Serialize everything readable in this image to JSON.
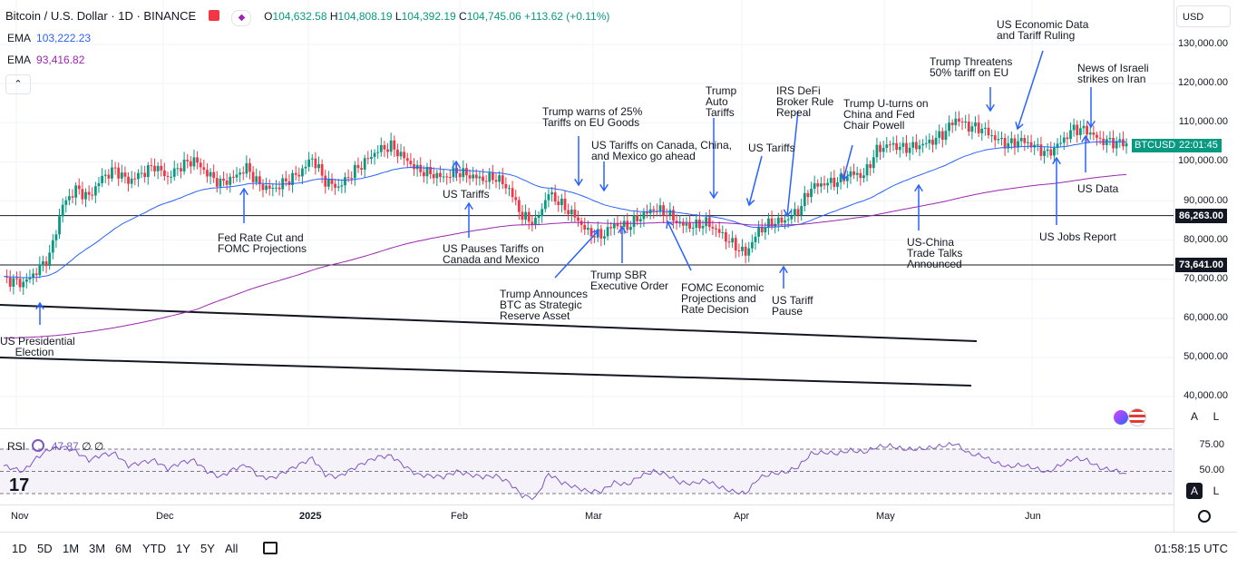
{
  "header": {
    "title": "Bitcoin / U.S. Dollar · 1D · BINANCE",
    "open_label": "O",
    "open": "104,632.58",
    "high_label": "H",
    "high": "104,808.19",
    "low_label": "L",
    "low": "104,392.19",
    "close_label": "C",
    "close": "104,745.06",
    "change": "+113.62 (+0.11%)"
  },
  "indicators": {
    "ema1_label": "EMA",
    "ema1_value": "103,222.23",
    "ema1_color": "#2962ff",
    "ema2_label": "EMA",
    "ema2_value": "93,416.82",
    "ema2_color": "#9c27b0",
    "collapse_icon": "chevron-up-icon"
  },
  "price_axis": {
    "currency": "USD",
    "ticks": [
      "130,000.00",
      "120,000.00",
      "110,000.00",
      "100,000.00",
      "90,000.00",
      "80,000.00",
      "70,000.00",
      "60,000.00",
      "50,000.00",
      "40,000.00"
    ],
    "tick_values": [
      130000,
      120000,
      110000,
      100000,
      90000,
      80000,
      70000,
      60000,
      50000,
      40000
    ],
    "level_1": "86,263.00",
    "level_1_value": 86263,
    "level_2": "73,641.00",
    "level_2_value": 73641,
    "symbol_tag": "BTCUSD",
    "countdown": "22:01:45",
    "last_price_value": 104745
  },
  "chart_data": {
    "type": "candlestick",
    "title": "Bitcoin / U.S. Dollar · 1D · BINANCE",
    "ylim": [
      37000,
      140000
    ],
    "x_labels": [
      "Nov",
      "Dec",
      "2025",
      "Feb",
      "Mar",
      "Apr",
      "May",
      "Jun"
    ],
    "close_series_approx": [
      [
        0,
        70000
      ],
      [
        6,
        69000
      ],
      [
        10,
        72000
      ],
      [
        14,
        76000
      ],
      [
        18,
        89000
      ],
      [
        22,
        93000
      ],
      [
        26,
        91000
      ],
      [
        30,
        96000
      ],
      [
        34,
        98000
      ],
      [
        38,
        95000
      ],
      [
        42,
        97000
      ],
      [
        46,
        99000
      ],
      [
        50,
        96000
      ],
      [
        54,
        99000
      ],
      [
        58,
        100500
      ],
      [
        62,
        97000
      ],
      [
        66,
        94500
      ],
      [
        70,
        96000
      ],
      [
        74,
        98500
      ],
      [
        78,
        94000
      ],
      [
        82,
        93000
      ],
      [
        86,
        95000
      ],
      [
        90,
        97000
      ],
      [
        94,
        101000
      ],
      [
        98,
        95000
      ],
      [
        102,
        93500
      ],
      [
        106,
        97000
      ],
      [
        110,
        100000
      ],
      [
        114,
        103000
      ],
      [
        118,
        104000
      ],
      [
        122,
        101000
      ],
      [
        126,
        98000
      ],
      [
        130,
        97000
      ],
      [
        134,
        96000
      ],
      [
        138,
        97500
      ],
      [
        142,
        96500
      ],
      [
        146,
        95500
      ],
      [
        150,
        96000
      ],
      [
        154,
        93000
      ],
      [
        158,
        86000
      ],
      [
        162,
        84500
      ],
      [
        166,
        92000
      ],
      [
        170,
        89000
      ],
      [
        174,
        86000
      ],
      [
        178,
        82000
      ],
      [
        182,
        81000
      ],
      [
        186,
        84000
      ],
      [
        190,
        83500
      ],
      [
        194,
        86000
      ],
      [
        198,
        88000
      ],
      [
        202,
        87000
      ],
      [
        206,
        84000
      ],
      [
        210,
        83500
      ],
      [
        214,
        84500
      ],
      [
        218,
        82000
      ],
      [
        222,
        79000
      ],
      [
        226,
        76500
      ],
      [
        230,
        82500
      ],
      [
        234,
        84500
      ],
      [
        238,
        85000
      ],
      [
        242,
        87500
      ],
      [
        246,
        93500
      ],
      [
        250,
        94500
      ],
      [
        254,
        95000
      ],
      [
        258,
        97000
      ],
      [
        262,
        96500
      ],
      [
        266,
        103000
      ],
      [
        270,
        104500
      ],
      [
        274,
        103500
      ],
      [
        278,
        104000
      ],
      [
        282,
        105000
      ],
      [
        286,
        107000
      ],
      [
        290,
        111000
      ],
      [
        294,
        109000
      ],
      [
        298,
        108500
      ],
      [
        302,
        106000
      ],
      [
        306,
        104500
      ],
      [
        310,
        105500
      ],
      [
        314,
        104000
      ],
      [
        318,
        102000
      ],
      [
        322,
        105000
      ],
      [
        326,
        108500
      ],
      [
        330,
        108000
      ],
      [
        334,
        105500
      ],
      [
        338,
        105000
      ],
      [
        342,
        104745
      ]
    ],
    "ema_fast": {
      "name": "EMA",
      "last": 103222.23
    },
    "ema_slow": {
      "name": "EMA",
      "last": 93416.82
    },
    "horizontal_levels": [
      86263,
      73641
    ],
    "annotations": [
      "US Presidential\n     Election",
      "Fed Rate Cut and\nFOMC Projections",
      "US Tariffs",
      "US Pauses Tariffs on\nCanada and Mexico",
      "Trump warns of 25%\nTariffs on EU Goods",
      "US Tariffs on Canada, China,\nand Mexico go ahead",
      "Trump Announces\nBTC as Strategic\nReserve Asset",
      "Trump SBR\nExecutive Order",
      "Trump\nAuto\nTariffs",
      "FOMC Economic\nProjections and\nRate Decision",
      "US Tariffs",
      "IRS DeFi\nBroker Rule\nRepeal",
      "US Tariff\nPause",
      "Trump U-turns on\nChina and Fed\nChair Powell",
      "US-China\nTrade Talks\nAnnounced",
      "Trump Threatens\n50% tariff on EU",
      "US Economic Data\nand Tariff Ruling",
      "News of Israeli\nstrikes on Iran",
      "US Data",
      "US Jobs Report"
    ]
  },
  "rsi": {
    "label": "RSI",
    "value": "47.87",
    "extra1": "∅",
    "extra2": "∅",
    "ticks": [
      "75.00",
      "50.00"
    ],
    "tick_values": [
      75,
      50
    ],
    "upper": 70,
    "lower": 30,
    "mid": 50,
    "series_approx": [
      [
        0,
        55
      ],
      [
        6,
        50
      ],
      [
        10,
        62
      ],
      [
        14,
        70
      ],
      [
        18,
        72
      ],
      [
        22,
        68
      ],
      [
        26,
        60
      ],
      [
        30,
        65
      ],
      [
        34,
        66
      ],
      [
        38,
        55
      ],
      [
        42,
        58
      ],
      [
        46,
        60
      ],
      [
        50,
        52
      ],
      [
        54,
        58
      ],
      [
        58,
        60
      ],
      [
        62,
        50
      ],
      [
        66,
        45
      ],
      [
        70,
        52
      ],
      [
        74,
        56
      ],
      [
        78,
        45
      ],
      [
        82,
        44
      ],
      [
        86,
        50
      ],
      [
        90,
        56
      ],
      [
        94,
        62
      ],
      [
        98,
        47
      ],
      [
        102,
        45
      ],
      [
        106,
        52
      ],
      [
        110,
        58
      ],
      [
        114,
        63
      ],
      [
        118,
        64
      ],
      [
        122,
        55
      ],
      [
        126,
        47
      ],
      [
        130,
        46
      ],
      [
        134,
        45
      ],
      [
        138,
        50
      ],
      [
        142,
        47
      ],
      [
        146,
        45
      ],
      [
        150,
        46
      ],
      [
        154,
        40
      ],
      [
        158,
        28
      ],
      [
        162,
        26
      ],
      [
        166,
        48
      ],
      [
        170,
        40
      ],
      [
        174,
        36
      ],
      [
        178,
        32
      ],
      [
        182,
        32
      ],
      [
        186,
        40
      ],
      [
        190,
        38
      ],
      [
        194,
        46
      ],
      [
        198,
        50
      ],
      [
        202,
        47
      ],
      [
        206,
        40
      ],
      [
        210,
        39
      ],
      [
        214,
        42
      ],
      [
        218,
        36
      ],
      [
        222,
        32
      ],
      [
        226,
        30
      ],
      [
        230,
        44
      ],
      [
        234,
        48
      ],
      [
        238,
        49
      ],
      [
        242,
        54
      ],
      [
        246,
        66
      ],
      [
        250,
        67
      ],
      [
        254,
        66
      ],
      [
        258,
        69
      ],
      [
        262,
        67
      ],
      [
        266,
        72
      ],
      [
        270,
        73
      ],
      [
        274,
        70
      ],
      [
        278,
        70
      ],
      [
        282,
        71
      ],
      [
        286,
        73
      ],
      [
        290,
        75
      ],
      [
        294,
        66
      ],
      [
        298,
        64
      ],
      [
        302,
        58
      ],
      [
        306,
        54
      ],
      [
        310,
        56
      ],
      [
        314,
        53
      ],
      [
        318,
        49
      ],
      [
        322,
        56
      ],
      [
        326,
        62
      ],
      [
        330,
        60
      ],
      [
        334,
        53
      ],
      [
        338,
        51
      ],
      [
        342,
        48
      ]
    ]
  },
  "time_axis": {
    "labels": [
      "Nov",
      "Dec",
      "2025",
      "Feb",
      "Mar",
      "Apr",
      "May",
      "Jun"
    ]
  },
  "bottom_toolbar": {
    "timeframes": [
      "1D",
      "5D",
      "1M",
      "3M",
      "6M",
      "YTD",
      "1Y",
      "5Y",
      "All"
    ],
    "calendar_icon": "calendar-icon",
    "clock": "01:58:15 UTC",
    "settings_icon": "gear-icon"
  },
  "scale_buttons": {
    "auto": "A",
    "log": "L"
  },
  "colors": {
    "up": "#089981",
    "down": "#f23645",
    "arrow": "#2962ff",
    "rsi": "#7e57c2"
  }
}
